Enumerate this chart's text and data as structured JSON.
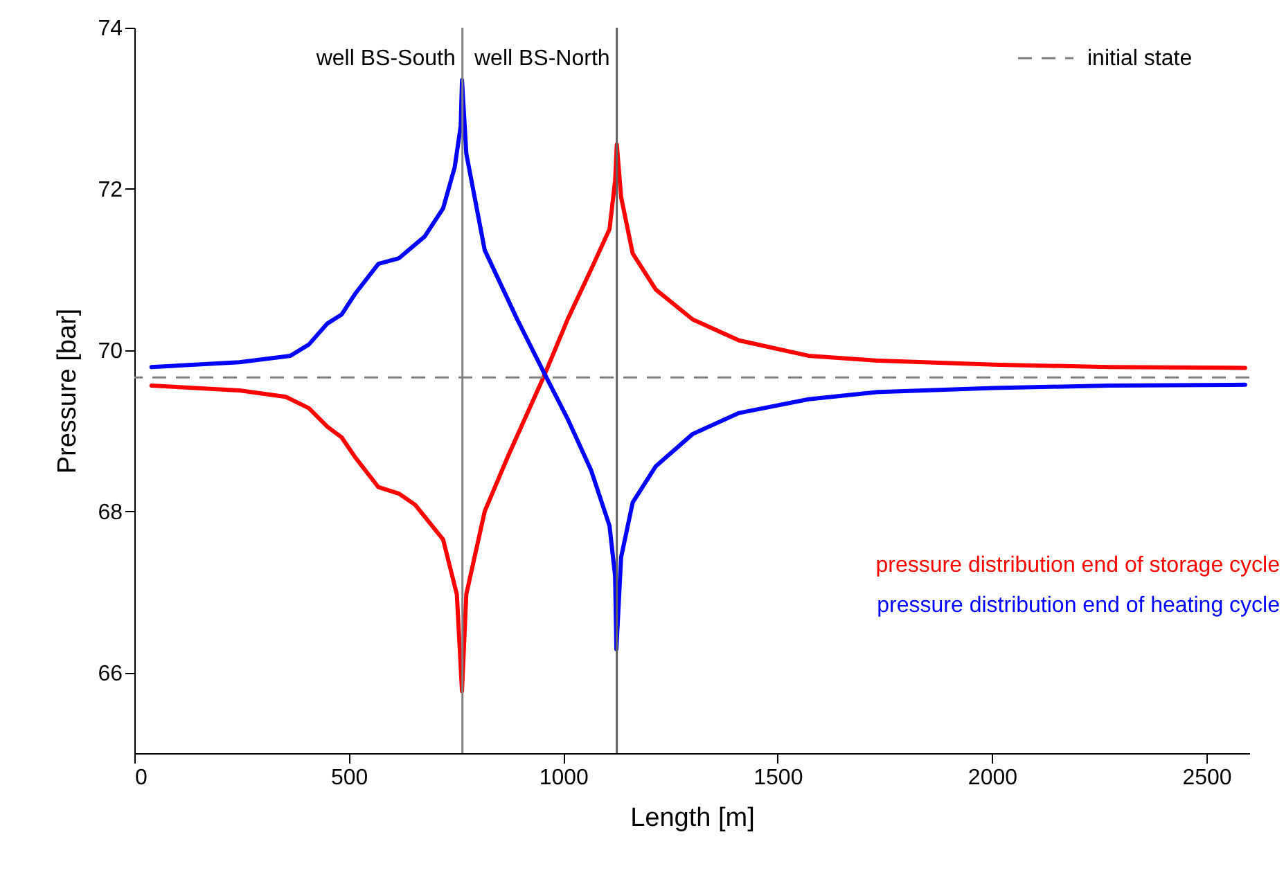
{
  "chart_data": {
    "type": "line",
    "xlabel": "Length [m]",
    "ylabel": "Pressure [bar]",
    "xlim": [
      0,
      2600
    ],
    "ylim": [
      65,
      74
    ],
    "xticks": [
      0,
      500,
      1000,
      1500,
      2000,
      2500
    ],
    "yticks": [
      66,
      68,
      70,
      72,
      74
    ],
    "series": [
      {
        "name": "pressure distribution end of storage cycle",
        "color": "#ff0000",
        "x": [
          40,
          245,
          353,
          407,
          450,
          483,
          515,
          569,
          617,
          655,
          720,
          752,
          764,
          774,
          817,
          871,
          957,
          1011,
          1065,
          1108,
          1121,
          1125,
          1135,
          1162,
          1216,
          1302,
          1410,
          1572,
          1734,
          2004,
          2273,
          2590
        ],
        "values": [
          69.56,
          69.5,
          69.42,
          69.28,
          69.05,
          68.92,
          68.67,
          68.3,
          68.22,
          68.08,
          67.65,
          66.97,
          65.77,
          66.97,
          68.0,
          68.68,
          69.7,
          70.39,
          71.0,
          71.5,
          72.1,
          72.55,
          71.9,
          71.2,
          70.75,
          70.38,
          70.12,
          69.93,
          69.87,
          69.82,
          69.79,
          69.78
        ]
      },
      {
        "name": "pressure distribution end of heating cycle",
        "color": "#0000ff",
        "x": [
          40,
          245,
          364,
          407,
          450,
          483,
          515,
          569,
          617,
          677,
          720,
          747,
          761,
          764,
          774,
          817,
          892,
          957,
          1011,
          1065,
          1108,
          1121,
          1124,
          1135,
          1162,
          1216,
          1302,
          1410,
          1572,
          1734,
          2004,
          2273,
          2590
        ],
        "values": [
          69.79,
          69.85,
          69.93,
          70.07,
          70.33,
          70.44,
          70.7,
          71.07,
          71.14,
          71.41,
          71.76,
          72.27,
          72.78,
          73.35,
          72.44,
          71.24,
          70.39,
          69.7,
          69.14,
          68.51,
          67.82,
          67.2,
          66.29,
          67.43,
          68.11,
          68.56,
          68.96,
          69.22,
          69.39,
          69.48,
          69.53,
          69.56,
          69.57
        ]
      }
    ],
    "ref_lines": [
      {
        "axis": "x",
        "value": 765,
        "label": "well BS-South",
        "color": "#808080",
        "line_style": "solid"
      },
      {
        "axis": "x",
        "value": 1125,
        "label": "well BS-North",
        "color": "#606060",
        "line_style": "solid"
      },
      {
        "axis": "y",
        "value": 69.66,
        "label": "initial state",
        "color": "#808080",
        "line_style": "dashed"
      }
    ]
  }
}
